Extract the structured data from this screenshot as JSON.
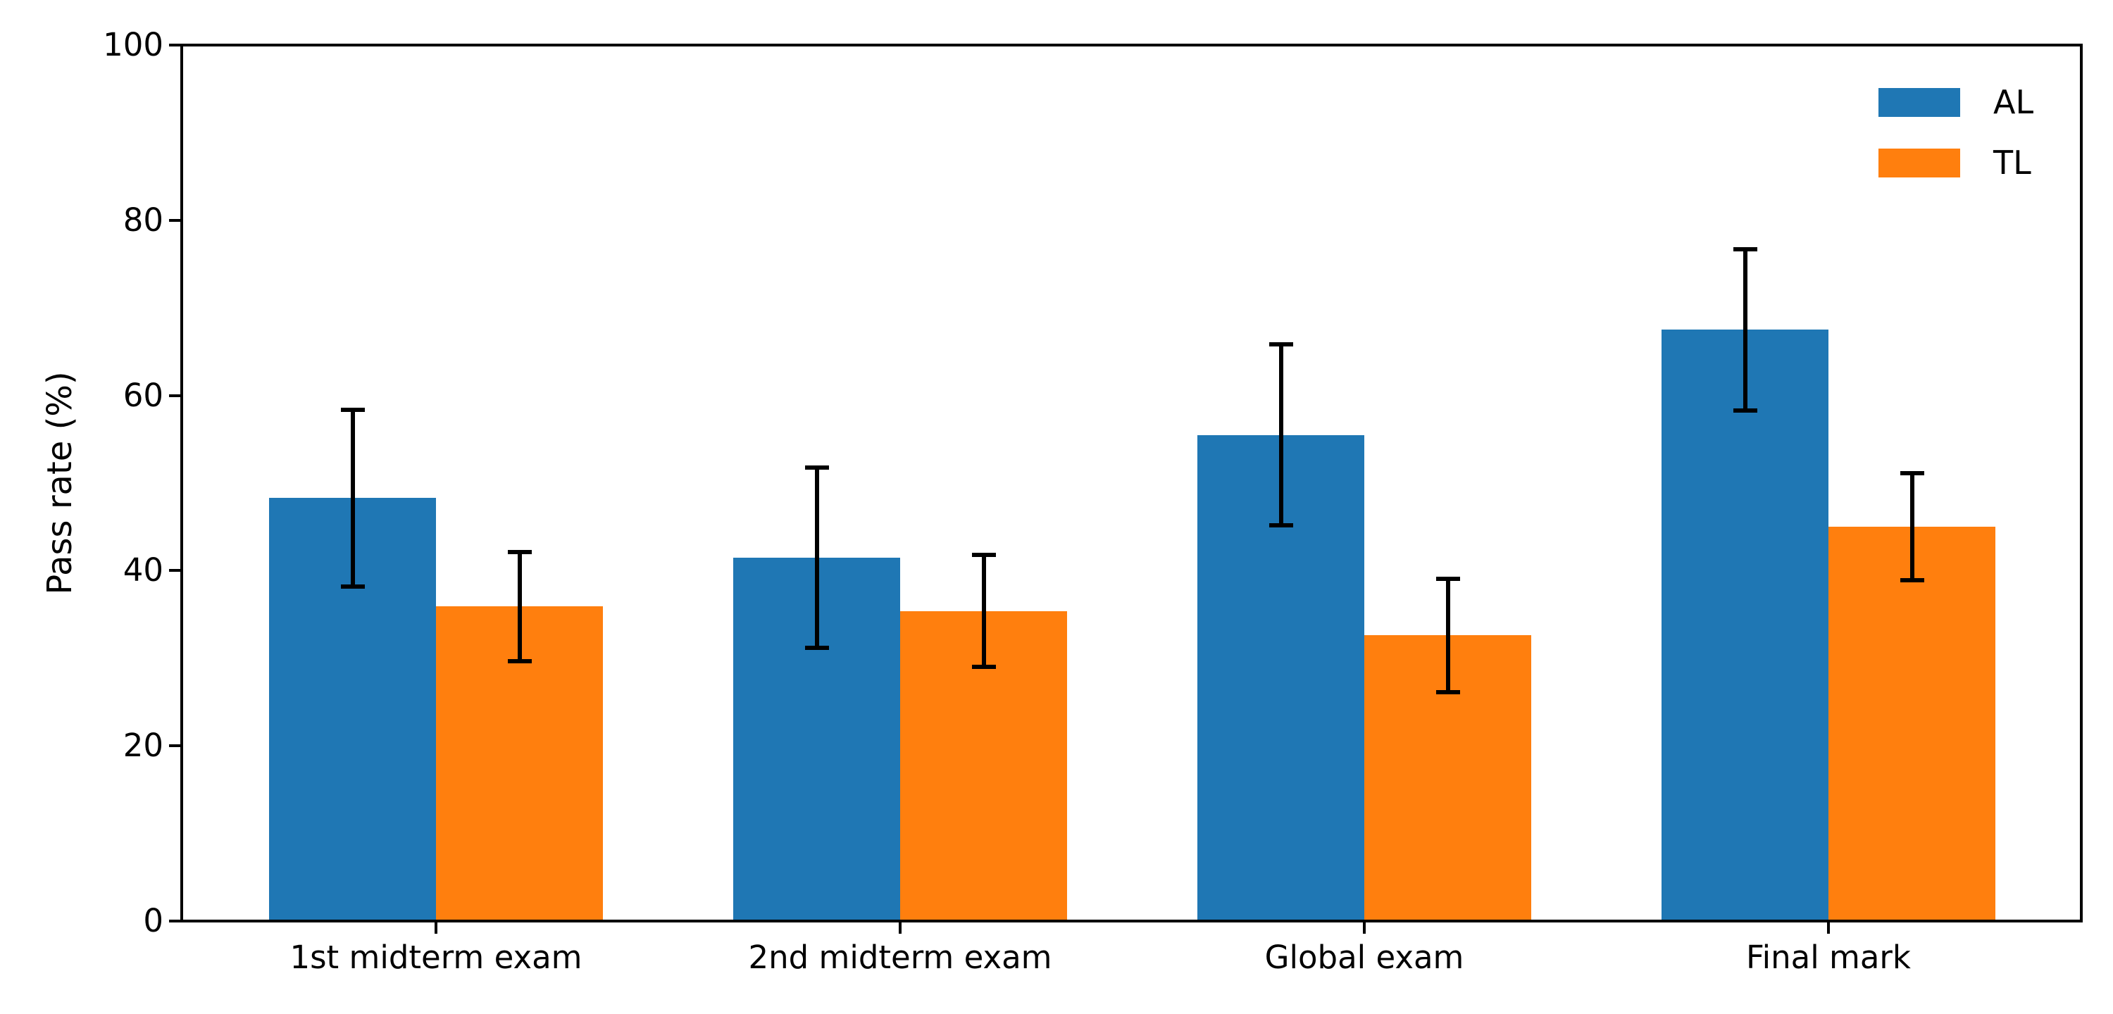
{
  "figure": {
    "background_color": "#ffffff"
  },
  "chart_data": {
    "type": "bar",
    "title": "",
    "xlabel": "",
    "ylabel": "Pass rate (%)",
    "categories": [
      "1st midterm exam",
      "2nd midterm exam",
      "Global exam",
      "Final mark"
    ],
    "series": [
      {
        "name": "AL",
        "color": "#1f77b4",
        "values": [
          48.3,
          41.5,
          55.5,
          67.5
        ],
        "errors": [
          10.1,
          10.3,
          10.3,
          9.2
        ]
      },
      {
        "name": "TL",
        "color": "#ff7f0e",
        "values": [
          35.9,
          35.4,
          32.6,
          45.0
        ],
        "errors": [
          6.2,
          6.4,
          6.5,
          6.1
        ]
      }
    ],
    "error_bar_color": "#000000",
    "ylim": [
      0,
      100
    ],
    "yticks": [
      0,
      20,
      40,
      60,
      80,
      100
    ],
    "grid": false,
    "legend_position": "upper right",
    "legend_frame": false,
    "axis_color": "#000000"
  }
}
